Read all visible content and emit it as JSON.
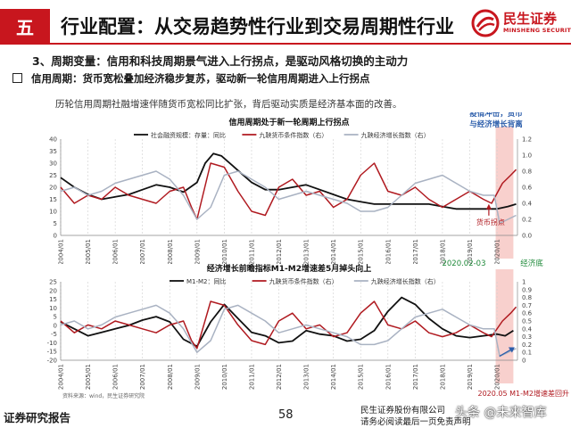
{
  "header": {
    "section": "五",
    "title": "行业配置：从交易趋势性行业到交易周期性行业",
    "logo_cn": "民生证券",
    "logo_en": "MINSHENG SECURITIES"
  },
  "subtitle": "3、周期变量：信用和科技周期景气进入上行拐点，是驱动风格切换的主动力",
  "bullet": "信用周期：货币宽松叠加经济稳步复苏，驱动新一轮信用周期进入上行拐点",
  "note": "历轮信用周期社融增速伴随货币宽松同比扩张，背后驱动实质是经济基本面的改善。",
  "annotations": {
    "top_right": [
      "疫情冲击，货币",
      "与经济增长背离"
    ],
    "money_inflection": "货币拐点",
    "date_2020_02": "2020.02-03",
    "economy_bottom": "经济底",
    "bottom_note": "2020.05 M1-M2增速差回升"
  },
  "source": "资料来源：wind，民生证券研究院",
  "colors": {
    "brand": "#c8161e",
    "black_series": "#111111",
    "red_series": "#b01a20",
    "gray_series": "#a9b2c2",
    "highlight": "#f6c4c0"
  },
  "chart_data": [
    {
      "type": "line",
      "title": "信用周期处于新一轮周期上行拐点",
      "xlabel": "",
      "ylabel": "",
      "x_ticks": [
        "2004/01",
        "2005/01",
        "2006/01",
        "2007/01",
        "2008/01",
        "2009/01",
        "2010/01",
        "2011/01",
        "2012/01",
        "2013/01",
        "2014/01",
        "2015/01",
        "2016/01",
        "2017/01",
        "2018/01",
        "2019/01",
        "2020/01"
      ],
      "left_ticks": [
        "0",
        "5",
        "10",
        "15",
        "20",
        "25",
        "30",
        "35",
        "40"
      ],
      "right_ticks": [
        "0.0",
        "0.2",
        "0.4",
        "0.6",
        "0.8",
        "1.0",
        "1.2"
      ],
      "ylim_left": [
        0,
        40
      ],
      "ylim_right": [
        0,
        1.2
      ],
      "x_range": [
        2004.0,
        2020.75
      ],
      "legend_position": "top",
      "series": [
        {
          "name": "社会融资规模：存量：同比",
          "axis": "left",
          "color_key": "black_series",
          "x": [
            2004.0,
            2004.5,
            2005.0,
            2005.5,
            2006.0,
            2006.5,
            2007.0,
            2007.5,
            2008.0,
            2008.5,
            2009.0,
            2009.3,
            2009.6,
            2009.9,
            2010.3,
            2010.6,
            2011.0,
            2011.5,
            2012.0,
            2012.5,
            2013.0,
            2013.5,
            2014.0,
            2014.5,
            2015.0,
            2015.5,
            2016.0,
            2016.5,
            2017.0,
            2017.5,
            2018.0,
            2018.5,
            2019.0,
            2019.5,
            2020.0,
            2020.4,
            2020.7
          ],
          "y": [
            24,
            20,
            17,
            15,
            16,
            17,
            19,
            21,
            20,
            18,
            22,
            30,
            34,
            33,
            29,
            26,
            22,
            19,
            19,
            20,
            21,
            19,
            17,
            15,
            14,
            13,
            13,
            13,
            13,
            13,
            12,
            11,
            11,
            11,
            11,
            12,
            13
          ]
        },
        {
          "name": "九鞅货币条件指数（右）",
          "axis": "right",
          "color_key": "red_series",
          "x": [
            2004.0,
            2004.5,
            2005.0,
            2005.5,
            2006.0,
            2006.5,
            2007.0,
            2007.5,
            2008.0,
            2008.5,
            2008.8,
            2009.0,
            2009.5,
            2010.0,
            2010.5,
            2011.0,
            2011.5,
            2012.0,
            2012.5,
            2013.0,
            2013.5,
            2014.0,
            2014.5,
            2015.0,
            2015.5,
            2016.0,
            2016.5,
            2017.0,
            2017.5,
            2018.0,
            2018.5,
            2019.0,
            2019.5,
            2019.8,
            2020.2,
            2020.5,
            2020.7
          ],
          "y": [
            0.6,
            0.4,
            0.5,
            0.45,
            0.6,
            0.5,
            0.45,
            0.4,
            0.55,
            0.6,
            0.35,
            0.2,
            0.9,
            0.85,
            0.55,
            0.3,
            0.25,
            0.6,
            0.7,
            0.5,
            0.55,
            0.35,
            0.45,
            0.75,
            0.9,
            0.55,
            0.5,
            0.6,
            0.45,
            0.35,
            0.45,
            0.55,
            0.45,
            0.4,
            0.65,
            0.75,
            0.82
          ]
        },
        {
          "name": "九鞅经济增长指数（右）",
          "axis": "right",
          "color_key": "gray_series",
          "x": [
            2004.0,
            2004.5,
            2005.0,
            2005.5,
            2006.0,
            2006.5,
            2007.0,
            2007.5,
            2008.0,
            2008.5,
            2009.0,
            2009.5,
            2010.0,
            2010.5,
            2011.0,
            2011.5,
            2012.0,
            2012.5,
            2013.0,
            2013.5,
            2014.0,
            2014.5,
            2015.0,
            2015.5,
            2016.0,
            2016.5,
            2017.0,
            2017.5,
            2018.0,
            2018.5,
            2019.0,
            2019.5,
            2019.9,
            2020.1,
            2020.4,
            2020.7
          ],
          "y": [
            0.55,
            0.6,
            0.5,
            0.55,
            0.65,
            0.7,
            0.75,
            0.8,
            0.7,
            0.5,
            0.2,
            0.35,
            0.75,
            0.8,
            0.7,
            0.6,
            0.45,
            0.5,
            0.55,
            0.5,
            0.45,
            0.4,
            0.3,
            0.3,
            0.35,
            0.5,
            0.65,
            0.7,
            0.75,
            0.65,
            0.55,
            0.5,
            0.5,
            0.15,
            0.2,
            0.25
          ]
        }
      ]
    },
    {
      "type": "line",
      "title": "经济增长前瞻指标M1-M2增速差5月掉头向上",
      "xlabel": "",
      "ylabel": "",
      "x_ticks": [
        "2004/01",
        "2005/01",
        "2006/01",
        "2007/01",
        "2008/01",
        "2009/01",
        "2010/01",
        "2011/01",
        "2012/01",
        "2013/01",
        "2014/01",
        "2015/01",
        "2016/01",
        "2017/01",
        "2018/01",
        "2019/01",
        "2020/01"
      ],
      "left_ticks": [
        "-20",
        "-15",
        "-10",
        "-5",
        "0",
        "5",
        "10",
        "15",
        "20",
        "25"
      ],
      "right_ticks": [
        "0",
        "0.1",
        "0.2",
        "0.3",
        "0.4",
        "0.5",
        "0.6",
        "0.7",
        "0.8",
        "0.9",
        "1"
      ],
      "ylim_left": [
        -20,
        25
      ],
      "ylim_right": [
        0,
        1
      ],
      "x_range": [
        2004.0,
        2020.75
      ],
      "legend_position": "top",
      "series": [
        {
          "name": "M1-M2：同比",
          "axis": "left",
          "color_key": "black_series",
          "x": [
            2004.0,
            2004.5,
            2005.0,
            2005.5,
            2006.0,
            2006.5,
            2007.0,
            2007.5,
            2008.0,
            2008.5,
            2009.0,
            2009.5,
            2010.0,
            2010.5,
            2011.0,
            2011.5,
            2012.0,
            2012.5,
            2013.0,
            2013.5,
            2014.0,
            2014.5,
            2015.0,
            2015.5,
            2016.0,
            2016.5,
            2017.0,
            2017.5,
            2018.0,
            2018.5,
            2019.0,
            2019.5,
            2020.0,
            2020.3,
            2020.6
          ],
          "y": [
            2,
            -2,
            -6,
            -4,
            -2,
            0,
            3,
            5,
            2,
            -8,
            -12,
            2,
            12,
            4,
            -4,
            -6,
            -10,
            -9,
            -3,
            -5,
            -6,
            -9,
            -8,
            -3,
            8,
            16,
            12,
            4,
            -2,
            -6,
            -7,
            -6,
            -5,
            -6,
            -3
          ]
        },
        {
          "name": "九鞅货币条件指数（右）",
          "axis": "right",
          "color_key": "red_series",
          "x": [
            2004.0,
            2004.5,
            2005.0,
            2005.5,
            2006.0,
            2006.5,
            2007.0,
            2007.5,
            2008.0,
            2008.5,
            2008.8,
            2009.0,
            2009.5,
            2010.0,
            2010.5,
            2011.0,
            2011.5,
            2012.0,
            2012.5,
            2013.0,
            2013.5,
            2014.0,
            2014.5,
            2015.0,
            2015.5,
            2016.0,
            2016.5,
            2017.0,
            2017.5,
            2018.0,
            2018.5,
            2019.0,
            2019.5,
            2019.8,
            2020.2,
            2020.5,
            2020.7
          ],
          "y": [
            0.5,
            0.35,
            0.45,
            0.4,
            0.5,
            0.45,
            0.4,
            0.35,
            0.45,
            0.5,
            0.25,
            0.15,
            0.75,
            0.7,
            0.45,
            0.25,
            0.2,
            0.5,
            0.6,
            0.4,
            0.45,
            0.3,
            0.35,
            0.6,
            0.75,
            0.45,
            0.4,
            0.5,
            0.35,
            0.3,
            0.35,
            0.45,
            0.35,
            0.3,
            0.5,
            0.6,
            0.68
          ]
        },
        {
          "name": "九鞅经济增长指数（右）",
          "axis": "right",
          "color_key": "gray_series",
          "x": [
            2004.0,
            2004.5,
            2005.0,
            2005.5,
            2006.0,
            2006.5,
            2007.0,
            2007.5,
            2008.0,
            2008.5,
            2009.0,
            2009.5,
            2010.0,
            2010.5,
            2011.0,
            2011.5,
            2012.0,
            2012.5,
            2013.0,
            2013.5,
            2014.0,
            2014.5,
            2015.0,
            2015.5,
            2016.0,
            2016.5,
            2017.0,
            2017.5,
            2018.0,
            2018.5,
            2019.0,
            2019.5,
            2019.9,
            2020.1,
            2020.4,
            2020.7
          ],
          "y": [
            0.45,
            0.5,
            0.4,
            0.45,
            0.55,
            0.6,
            0.65,
            0.7,
            0.6,
            0.4,
            0.1,
            0.25,
            0.65,
            0.7,
            0.6,
            0.5,
            0.35,
            0.4,
            0.45,
            0.4,
            0.35,
            0.3,
            0.2,
            0.2,
            0.25,
            0.4,
            0.55,
            0.6,
            0.65,
            0.55,
            0.45,
            0.4,
            0.4,
            0.05,
            0.1,
            0.15
          ]
        }
      ]
    }
  ],
  "footer": {
    "left": "证券研究报告",
    "page": "58",
    "right_line1": "民生证券股份有限公司",
    "right_line2": "请务必阅读最后一页免责声明",
    "watermark": "头条 @未来智库"
  }
}
